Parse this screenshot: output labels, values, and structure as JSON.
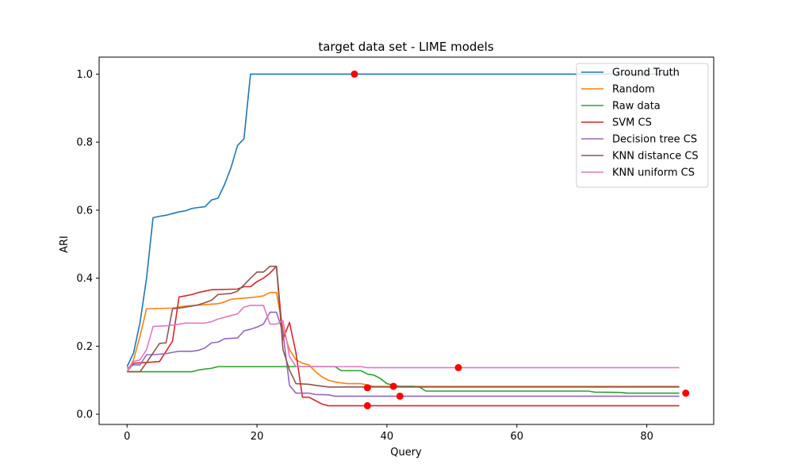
{
  "chart_data": {
    "type": "line",
    "title": "target data set - LIME models",
    "xlabel": "Query",
    "ylabel": "ARI",
    "xlim": [
      -4.3,
      90.3
    ],
    "ylim": [
      -0.03,
      1.05
    ],
    "xticks": [
      0,
      20,
      40,
      60,
      80
    ],
    "yticks": [
      0.0,
      0.2,
      0.4,
      0.6,
      0.8,
      1.0
    ],
    "ytick_labels": [
      "0.0",
      "0.2",
      "0.4",
      "0.6",
      "0.8",
      "1.0"
    ],
    "grid": false,
    "legend_position": "top-right",
    "series": [
      {
        "name": "Ground Truth",
        "color": "#1f77b4",
        "points": [
          [
            0,
            0.14
          ],
          [
            1,
            0.18
          ],
          [
            2,
            0.27
          ],
          [
            3,
            0.4
          ],
          [
            4,
            0.578
          ],
          [
            5,
            0.582
          ],
          [
            6,
            0.585
          ],
          [
            7,
            0.59
          ],
          [
            8,
            0.595
          ],
          [
            9,
            0.598
          ],
          [
            10,
            0.605
          ],
          [
            11,
            0.608
          ],
          [
            12,
            0.61
          ],
          [
            13,
            0.63
          ],
          [
            14,
            0.635
          ],
          [
            15,
            0.675
          ],
          [
            16,
            0.725
          ],
          [
            17,
            0.79
          ],
          [
            18,
            0.81
          ],
          [
            19,
            1.0
          ],
          [
            85,
            1.0
          ]
        ],
        "marker": [
          35,
          1.0
        ]
      },
      {
        "name": "Random",
        "color": "#ff7f0e",
        "points": [
          [
            0,
            0.125
          ],
          [
            1,
            0.16
          ],
          [
            2,
            0.23
          ],
          [
            3,
            0.31
          ],
          [
            7,
            0.312
          ],
          [
            8,
            0.315
          ],
          [
            9,
            0.318
          ],
          [
            14,
            0.325
          ],
          [
            15,
            0.33
          ],
          [
            16,
            0.338
          ],
          [
            19,
            0.343
          ],
          [
            20,
            0.345
          ],
          [
            21,
            0.348
          ],
          [
            22,
            0.358
          ],
          [
            23,
            0.358
          ],
          [
            24,
            0.25
          ],
          [
            25,
            0.19
          ],
          [
            26,
            0.16
          ],
          [
            27,
            0.15
          ],
          [
            28,
            0.145
          ],
          [
            29,
            0.125
          ],
          [
            30,
            0.11
          ],
          [
            31,
            0.1
          ],
          [
            32,
            0.095
          ],
          [
            33,
            0.092
          ],
          [
            34,
            0.09
          ],
          [
            35,
            0.09
          ],
          [
            36,
            0.09
          ],
          [
            37,
            0.086
          ],
          [
            38,
            0.082
          ],
          [
            85,
            0.082
          ]
        ],
        "marker": [
          41,
          0.082
        ]
      },
      {
        "name": "Raw data",
        "color": "#2ca02c",
        "points": [
          [
            0,
            0.125
          ],
          [
            10,
            0.125
          ],
          [
            11,
            0.13
          ],
          [
            12,
            0.133
          ],
          [
            13,
            0.135
          ],
          [
            14,
            0.14
          ],
          [
            32,
            0.14
          ],
          [
            33,
            0.128
          ],
          [
            36,
            0.128
          ],
          [
            37,
            0.118
          ],
          [
            38,
            0.115
          ],
          [
            39,
            0.105
          ],
          [
            40,
            0.09
          ],
          [
            41,
            0.085
          ],
          [
            42,
            0.082
          ],
          [
            44,
            0.082
          ],
          [
            45,
            0.08
          ],
          [
            46,
            0.068
          ],
          [
            71,
            0.068
          ],
          [
            72,
            0.065
          ],
          [
            76,
            0.064
          ],
          [
            77,
            0.062
          ],
          [
            85,
            0.062
          ]
        ],
        "marker": [
          86,
          0.062
        ]
      },
      {
        "name": "SVM CS",
        "color": "#d62728",
        "points": [
          [
            0,
            0.125
          ],
          [
            1,
            0.15
          ],
          [
            3,
            0.152
          ],
          [
            5,
            0.155
          ],
          [
            6,
            0.185
          ],
          [
            7,
            0.215
          ],
          [
            8,
            0.345
          ],
          [
            9,
            0.348
          ],
          [
            10,
            0.352
          ],
          [
            11,
            0.358
          ],
          [
            12,
            0.362
          ],
          [
            13,
            0.366
          ],
          [
            17,
            0.368
          ],
          [
            18,
            0.375
          ],
          [
            19,
            0.375
          ],
          [
            20,
            0.39
          ],
          [
            21,
            0.4
          ],
          [
            22,
            0.415
          ],
          [
            23,
            0.435
          ],
          [
            24,
            0.22
          ],
          [
            25,
            0.27
          ],
          [
            26,
            0.18
          ],
          [
            27,
            0.05
          ],
          [
            28,
            0.05
          ],
          [
            29,
            0.04
          ],
          [
            30,
            0.03
          ],
          [
            31,
            0.025
          ],
          [
            85,
            0.025
          ]
        ],
        "marker": [
          37,
          0.025
        ]
      },
      {
        "name": "Decision tree CS",
        "color": "#9467bd",
        "points": [
          [
            0,
            0.135
          ],
          [
            1,
            0.145
          ],
          [
            2,
            0.145
          ],
          [
            3,
            0.175
          ],
          [
            4,
            0.175
          ],
          [
            6,
            0.178
          ],
          [
            7,
            0.182
          ],
          [
            8,
            0.185
          ],
          [
            10,
            0.185
          ],
          [
            11,
            0.188
          ],
          [
            12,
            0.195
          ],
          [
            13,
            0.21
          ],
          [
            14,
            0.212
          ],
          [
            15,
            0.222
          ],
          [
            17,
            0.224
          ],
          [
            18,
            0.245
          ],
          [
            19,
            0.25
          ],
          [
            20,
            0.256
          ],
          [
            21,
            0.265
          ],
          [
            22,
            0.3
          ],
          [
            23,
            0.3
          ],
          [
            24,
            0.24
          ],
          [
            25,
            0.085
          ],
          [
            26,
            0.062
          ],
          [
            28,
            0.062
          ],
          [
            29,
            0.058
          ],
          [
            31,
            0.057
          ],
          [
            32,
            0.053
          ],
          [
            85,
            0.053
          ]
        ],
        "marker": [
          42,
          0.053
        ]
      },
      {
        "name": "KNN distance CS",
        "color": "#8c564b",
        "points": [
          [
            0,
            0.125
          ],
          [
            2,
            0.125
          ],
          [
            3,
            0.152
          ],
          [
            5,
            0.208
          ],
          [
            6,
            0.21
          ],
          [
            7,
            0.31
          ],
          [
            8,
            0.312
          ],
          [
            9,
            0.315
          ],
          [
            10,
            0.318
          ],
          [
            11,
            0.322
          ],
          [
            12,
            0.328
          ],
          [
            13,
            0.335
          ],
          [
            14,
            0.352
          ],
          [
            16,
            0.355
          ],
          [
            17,
            0.362
          ],
          [
            18,
            0.38
          ],
          [
            19,
            0.4
          ],
          [
            20,
            0.418
          ],
          [
            21,
            0.418
          ],
          [
            22,
            0.435
          ],
          [
            23,
            0.435
          ],
          [
            24,
            0.19
          ],
          [
            25,
            0.13
          ],
          [
            26,
            0.09
          ],
          [
            28,
            0.088
          ],
          [
            29,
            0.085
          ],
          [
            31,
            0.08
          ],
          [
            85,
            0.08
          ]
        ],
        "marker": [
          37,
          0.078
        ]
      },
      {
        "name": "KNN uniform CS",
        "color": "#e377c2",
        "points": [
          [
            0,
            0.125
          ],
          [
            1,
            0.155
          ],
          [
            2,
            0.16
          ],
          [
            3,
            0.19
          ],
          [
            4,
            0.258
          ],
          [
            6,
            0.26
          ],
          [
            7,
            0.262
          ],
          [
            8,
            0.265
          ],
          [
            9,
            0.268
          ],
          [
            12,
            0.268
          ],
          [
            13,
            0.272
          ],
          [
            14,
            0.28
          ],
          [
            15,
            0.285
          ],
          [
            16,
            0.29
          ],
          [
            17,
            0.295
          ],
          [
            18,
            0.315
          ],
          [
            19,
            0.32
          ],
          [
            21,
            0.32
          ],
          [
            22,
            0.265
          ],
          [
            23,
            0.265
          ],
          [
            24,
            0.275
          ],
          [
            25,
            0.17
          ],
          [
            26,
            0.14
          ],
          [
            36,
            0.14
          ],
          [
            37,
            0.137
          ],
          [
            85,
            0.137
          ]
        ],
        "marker": [
          51,
          0.137
        ]
      }
    ]
  }
}
